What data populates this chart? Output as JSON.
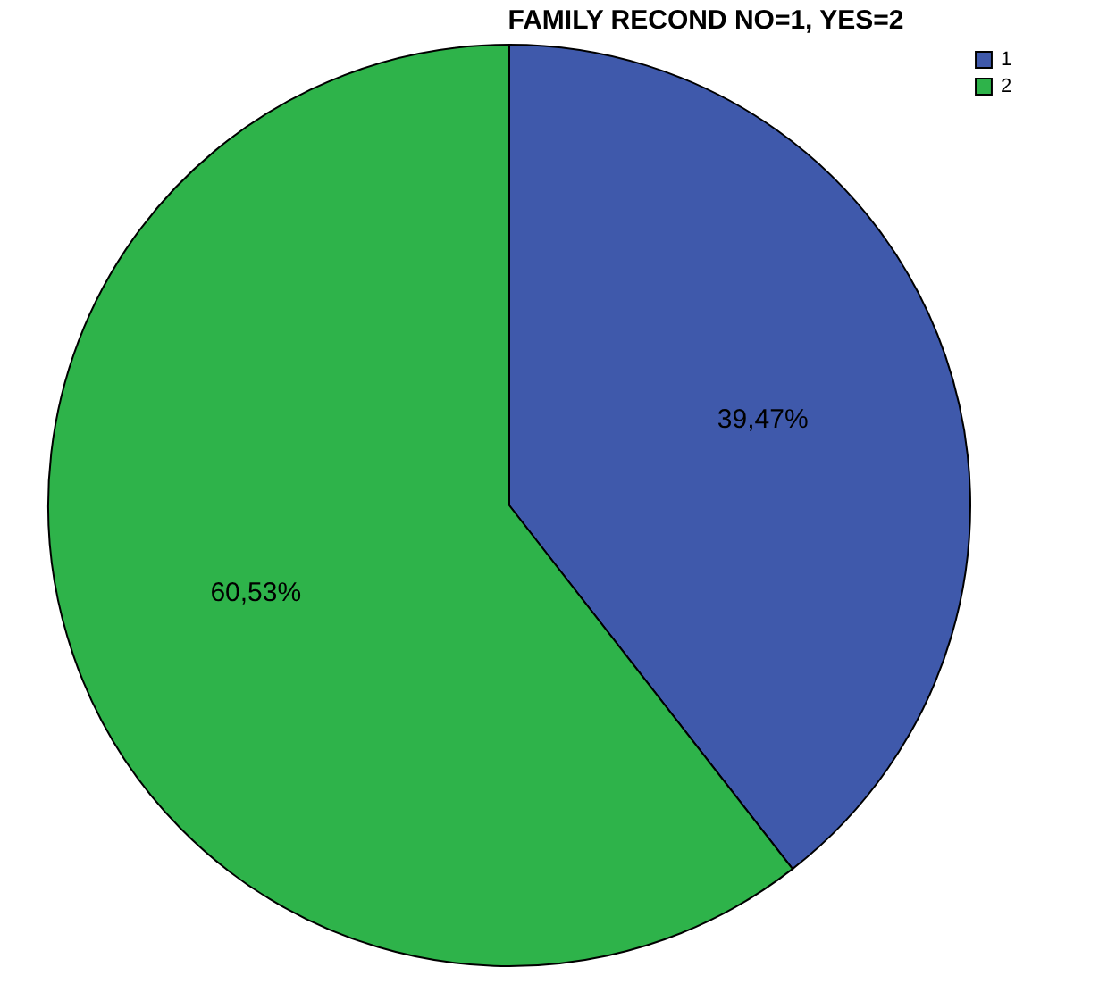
{
  "chart_data": {
    "type": "pie",
    "title": "FAMILY RECOND NO=1, YES=2",
    "categories": [
      "1",
      "2"
    ],
    "values": [
      39.47,
      60.53
    ],
    "colors": [
      "#3f59ab",
      "#2eb34a"
    ],
    "value_labels": [
      "39,47%",
      "60,53%"
    ],
    "legend": "top right"
  }
}
